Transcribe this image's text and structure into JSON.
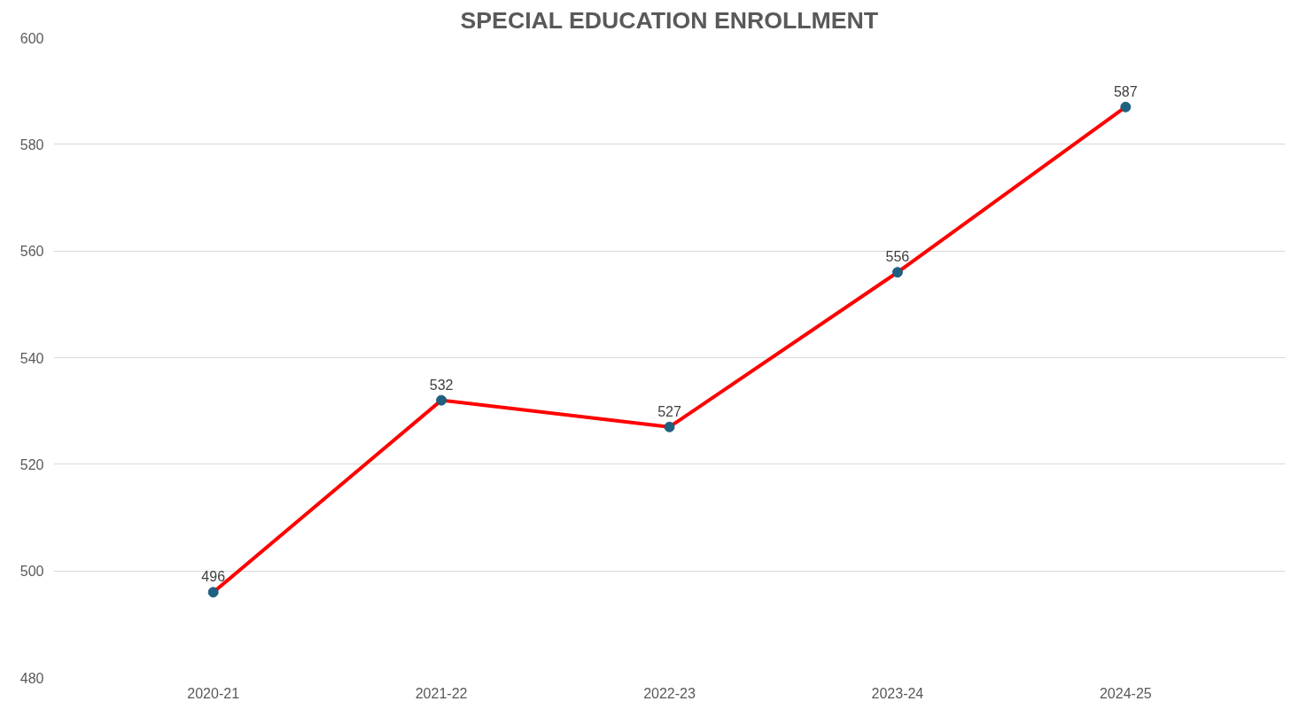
{
  "chart_data": {
    "type": "line",
    "title": "SPECIAL EDUCATION ENROLLMENT",
    "categories": [
      "2020-21",
      "2021-22",
      "2022-23",
      "2023-24",
      "2024-25"
    ],
    "series": [
      {
        "color": "#ff0000",
        "colors": [
          "#1f5f7f",
          "#1f5f7f",
          "#1f5f7f",
          "#1f5f7f",
          "#1f5f7f"
        ],
        "values": [
          496,
          532,
          527,
          556,
          587
        ]
      }
    ],
    "ylim": [
      480,
      600
    ],
    "yticks": [
      480,
      500,
      520,
      540,
      560,
      580,
      600
    ],
    "grid": "y",
    "marker": "circle",
    "line_style": "solid",
    "data_labels": true
  }
}
